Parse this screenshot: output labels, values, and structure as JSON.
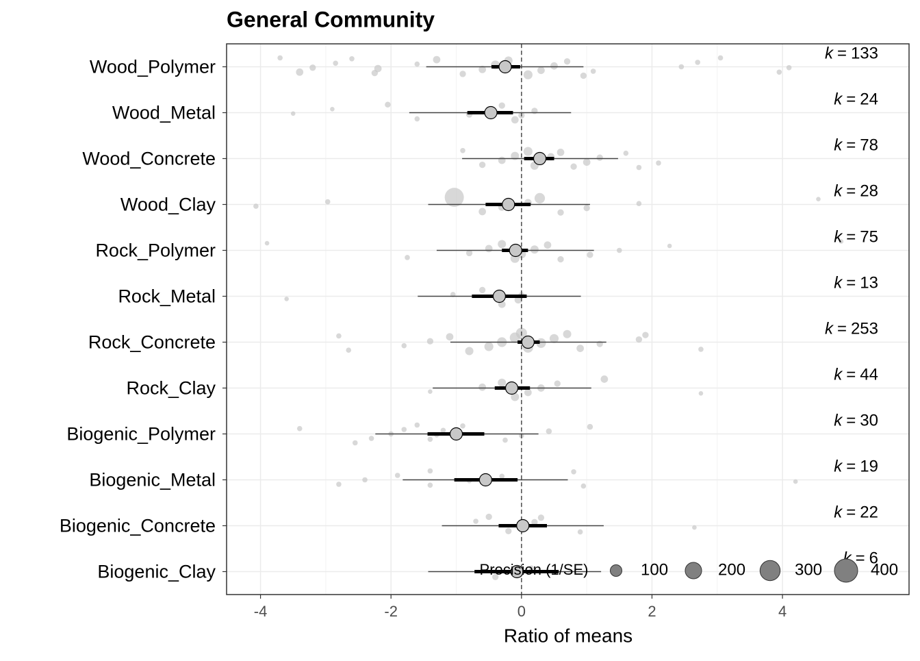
{
  "chart_data": {
    "type": "orchard",
    "title": "General Community",
    "x_label": "Ratio of means",
    "xlim": [
      -4.52,
      5.94
    ],
    "xticks": [
      -4,
      -2,
      0,
      2,
      4
    ],
    "grid": true,
    "ref_line": 0,
    "categories": [
      "Wood_Polymer",
      "Wood_Metal",
      "Wood_Concrete",
      "Wood_Clay",
      "Rock_Polymer",
      "Rock_Metal",
      "Rock_Concrete",
      "Rock_Clay",
      "Biogenic_Polymer",
      "Biogenic_Metal",
      "Biogenic_Concrete",
      "Biogenic_Clay"
    ],
    "estimate": [
      -0.25,
      -0.47,
      0.28,
      -0.2,
      -0.09,
      -0.34,
      0.1,
      -0.15,
      -1.0,
      -0.55,
      0.02,
      -0.07
    ],
    "ci_low": [
      -0.46,
      -0.83,
      0.04,
      -0.55,
      -0.3,
      -0.76,
      -0.06,
      -0.41,
      -1.44,
      -1.03,
      -0.35,
      -0.72
    ],
    "ci_high": [
      -0.02,
      -0.13,
      0.5,
      0.14,
      0.1,
      0.08,
      0.28,
      0.13,
      -0.57,
      -0.06,
      0.39,
      0.57
    ],
    "pi_low": [
      -1.46,
      -1.72,
      -0.91,
      -1.43,
      -1.3,
      -1.59,
      -1.09,
      -1.36,
      -2.24,
      -1.82,
      -1.22,
      -1.43
    ],
    "pi_high": [
      0.95,
      0.76,
      1.48,
      1.05,
      1.11,
      0.91,
      1.3,
      1.07,
      0.26,
      0.71,
      1.26,
      1.22
    ],
    "k_symbol": "k",
    "k_sep": "=",
    "k": [
      133,
      24,
      78,
      28,
      75,
      13,
      253,
      44,
      30,
      19,
      22,
      6
    ],
    "points": [
      {
        "x": [
          -3.7,
          -3.4,
          -3.2,
          -2.85,
          -2.6,
          -2.25,
          -2.2,
          -1.6,
          -1.3,
          -0.9,
          -0.6,
          -0.4,
          -0.2,
          0.1,
          0.3,
          0.5,
          0.7,
          0.95,
          1.1,
          2.45,
          2.7,
          3.05,
          3.95,
          4.1
        ],
        "precision": [
          20,
          40,
          30,
          20,
          20,
          30,
          40,
          20,
          40,
          30,
          40,
          60,
          50,
          60,
          40,
          40,
          30,
          30,
          20,
          20,
          20,
          20,
          20,
          20
        ]
      },
      {
        "x": [
          -3.5,
          -2.9,
          -2.05,
          -1.6,
          -0.8,
          -0.5,
          -0.3,
          -0.1,
          0,
          0.2
        ],
        "precision": [
          15,
          15,
          25,
          20,
          30,
          40,
          30,
          40,
          30,
          30
        ]
      },
      {
        "x": [
          -0.9,
          -0.6,
          -0.3,
          -0.1,
          0.1,
          0.2,
          0.3,
          0.45,
          0.6,
          0.8,
          1.0,
          1.2,
          1.6,
          1.8,
          2.1
        ],
        "precision": [
          20,
          30,
          40,
          50,
          60,
          50,
          50,
          40,
          40,
          30,
          40,
          30,
          20,
          20,
          20
        ]
      },
      {
        "x": [
          -4.07,
          -2.97,
          -1.03,
          -0.6,
          -0.3,
          0.1,
          0.28,
          0.6,
          1.0,
          1.8,
          4.55
        ],
        "precision": [
          20,
          20,
          270,
          40,
          40,
          40,
          80,
          30,
          30,
          20,
          15
        ]
      },
      {
        "x": [
          -3.9,
          -1.75,
          -0.8,
          -0.5,
          -0.3,
          -0.1,
          0,
          0.2,
          0.4,
          0.6,
          1.05,
          1.5,
          2.27,
          4.9
        ],
        "precision": [
          15,
          20,
          30,
          40,
          50,
          60,
          60,
          50,
          40,
          30,
          30,
          20,
          15,
          15
        ]
      },
      {
        "x": [
          -3.6,
          -1.05,
          -0.6,
          -0.3,
          -0.05,
          0
        ],
        "precision": [
          15,
          20,
          30,
          40,
          40,
          30
        ]
      },
      {
        "x": [
          -2.8,
          -2.65,
          -1.8,
          -1.4,
          -1.1,
          -0.8,
          -0.5,
          -0.3,
          -0.1,
          0,
          0.1,
          0.3,
          0.5,
          0.7,
          0.9,
          1.2,
          1.8,
          1.9,
          2.75
        ],
        "precision": [
          20,
          20,
          20,
          30,
          40,
          50,
          60,
          70,
          80,
          90,
          80,
          70,
          60,
          50,
          40,
          30,
          30,
          30,
          20
        ]
      },
      {
        "x": [
          -1.4,
          -0.6,
          -0.3,
          -0.1,
          0.1,
          0.3,
          0.55,
          1.27,
          2.75
        ],
        "precision": [
          15,
          40,
          50,
          50,
          40,
          40,
          30,
          40,
          15
        ]
      },
      {
        "x": [
          -3.4,
          -2.55,
          -2.3,
          -2.0,
          -1.8,
          -1.6,
          -1.4,
          -1.3,
          -1.2,
          -0.9,
          -0.25,
          0,
          0.42,
          1.05
        ],
        "precision": [
          20,
          20,
          20,
          20,
          20,
          20,
          20,
          20,
          20,
          20,
          20,
          20,
          25,
          25
        ]
      },
      {
        "x": [
          -2.8,
          -2.4,
          -1.9,
          -1.4,
          -1.4,
          -0.8,
          -0.3,
          0.8,
          0.95,
          4.2
        ],
        "precision": [
          20,
          20,
          20,
          20,
          20,
          20,
          20,
          20,
          20,
          15
        ]
      },
      {
        "x": [
          -0.7,
          -0.5,
          -0.2,
          0,
          0.2,
          0.3,
          0.9,
          2.65
        ],
        "precision": [
          20,
          30,
          30,
          40,
          30,
          30,
          20,
          15
        ]
      },
      {
        "x": [
          -0.4,
          -0.1,
          0.15
        ],
        "precision": [
          30,
          30,
          20
        ]
      }
    ],
    "legend_title": "Precision (1/SE)",
    "legend_sizes": [
      100,
      200,
      300,
      400
    ],
    "size_max": 400,
    "point_color": "#c8c8c8",
    "estimate_color": "#c8c8c8"
  }
}
